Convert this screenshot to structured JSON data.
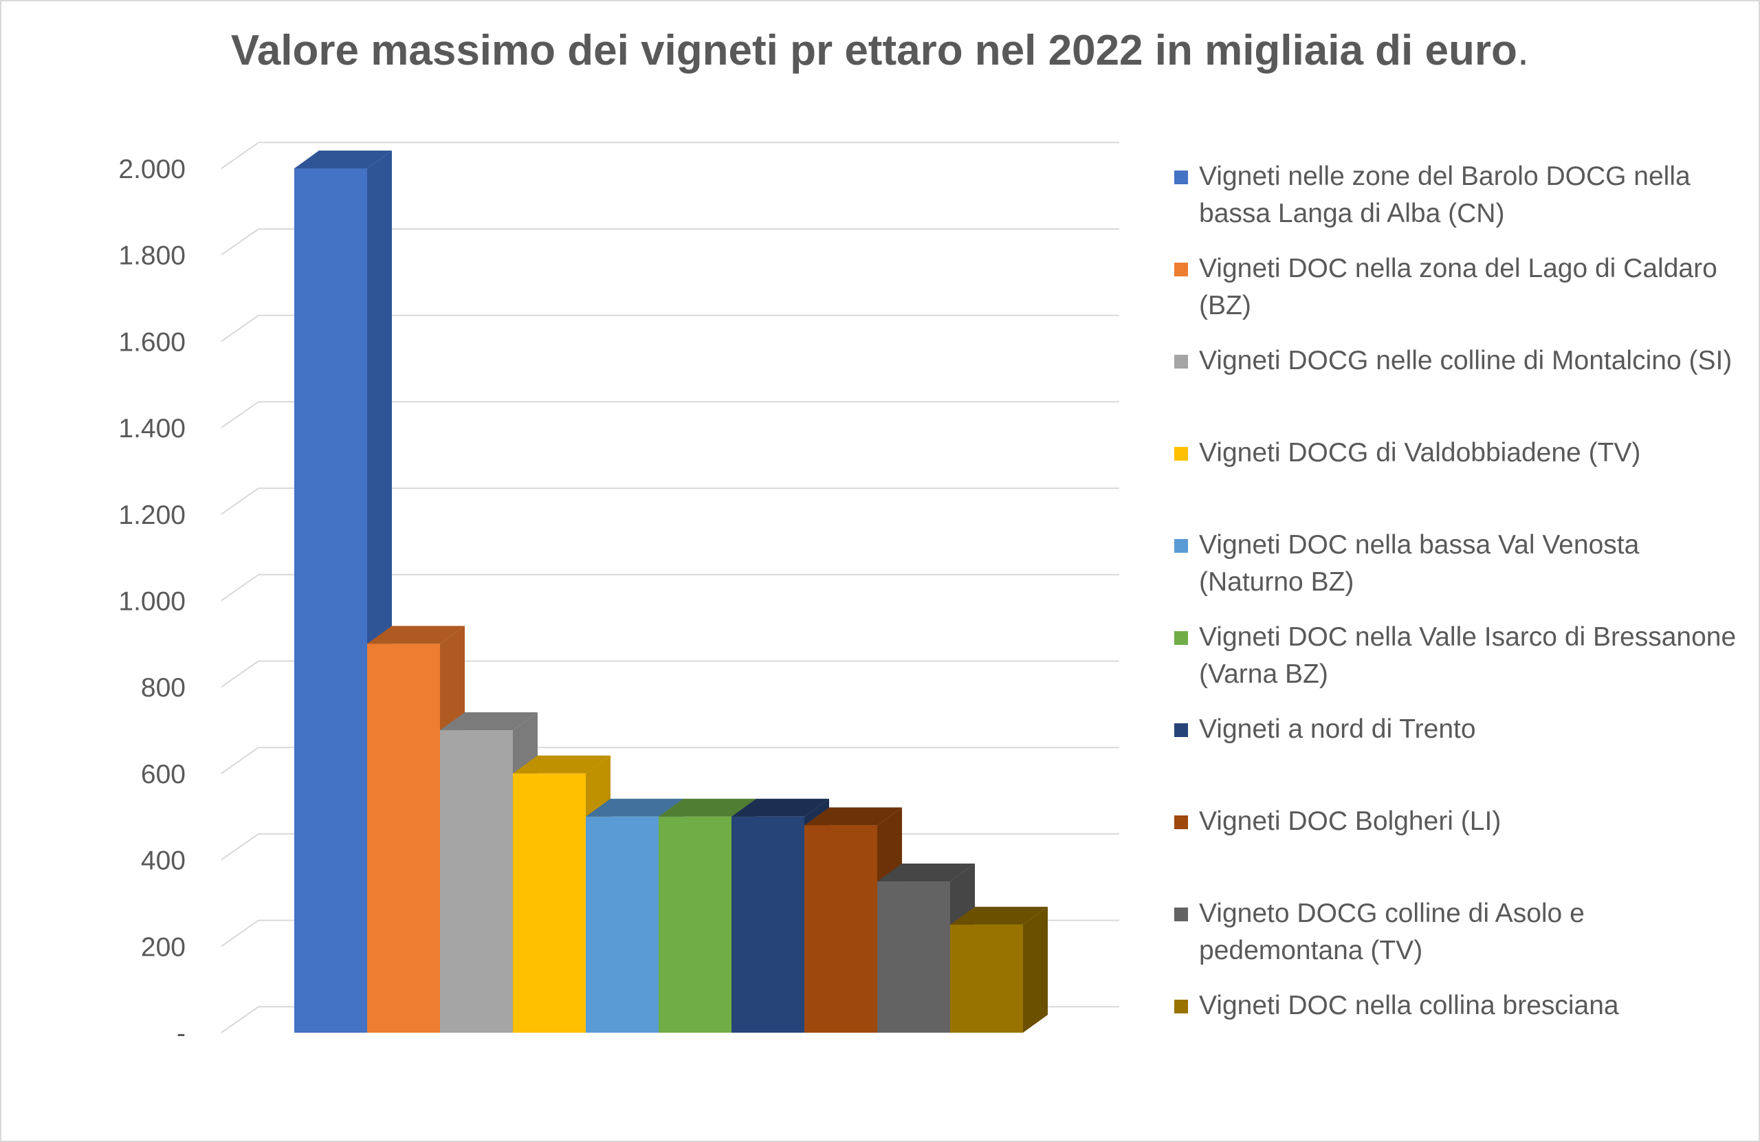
{
  "chart_data": {
    "type": "bar",
    "title": "Valore massimo dei vigneti pr ettaro nel 2022 in migliaia di euro",
    "title_suffix": ".",
    "xlabel": "",
    "ylabel": "",
    "ylim": [
      0,
      2000
    ],
    "yticks": [
      0,
      200,
      400,
      600,
      800,
      1000,
      1200,
      1400,
      1600,
      1800,
      2000
    ],
    "ytick_labels": [
      "-",
      "200",
      "400",
      "600",
      "800",
      "1.000",
      "1.200",
      "1.400",
      "1.600",
      "1.800",
      "2.000"
    ],
    "grid": true,
    "legend_position": "right",
    "three_d": true,
    "categories": [
      "Vigneti nelle zone del Barolo DOCG nella bassa Langa di Alba (CN)",
      "Vigneti DOC nella zona del Lago di Caldaro (BZ)",
      "Vigneti DOCG nelle colline di Montalcino (SI)",
      "Vigneti DOCG di Valdobbiadene (TV)",
      "Vigneti DOC nella bassa Val Venosta (Naturno BZ)",
      "Vigneti DOC nella Valle Isarco di Bressanone (Varna BZ)",
      "Vigneti a nord di Trento",
      "Vigneti DOC Bolgheri (LI)",
      "Vigneto DOCG colline di Asolo e pedemontana (TV)",
      "Vigneti DOC nella collina bresciana"
    ],
    "values": [
      2000,
      900,
      700,
      600,
      500,
      500,
      500,
      480,
      350,
      250
    ],
    "colors": [
      "#4472C4",
      "#ED7D31",
      "#A5A5A5",
      "#FFC000",
      "#5B9BD5",
      "#70AD47",
      "#264478",
      "#9E480E",
      "#636363",
      "#997300"
    ],
    "side_colors": [
      "#2F5597",
      "#AE5A21",
      "#7B7B7B",
      "#BF9000",
      "#41719C",
      "#507E32",
      "#1B2F52",
      "#6E3209",
      "#464646",
      "#6B5000"
    ]
  }
}
